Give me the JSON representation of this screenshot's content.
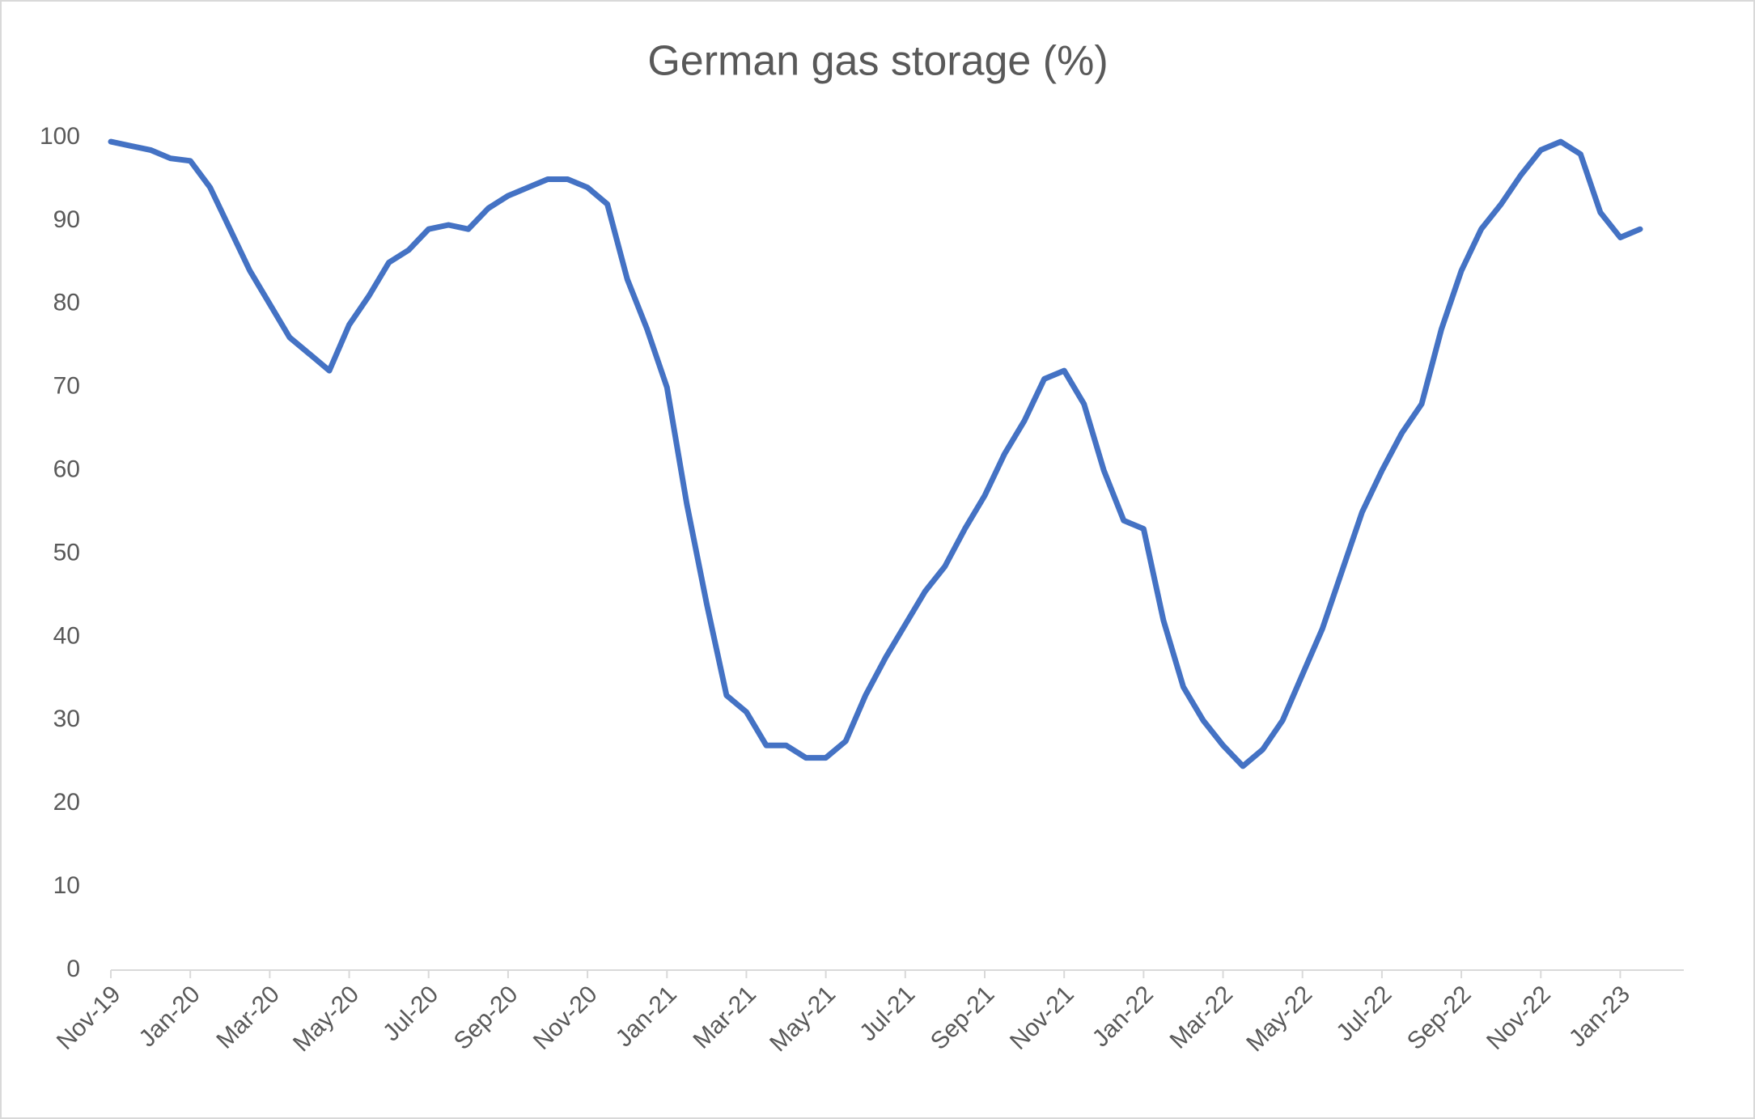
{
  "chart_data": {
    "type": "line",
    "title": "German gas storage (%)",
    "categories": [
      "Nov-19",
      null,
      null,
      null,
      "Jan-20",
      null,
      null,
      null,
      "Mar-20",
      null,
      null,
      null,
      "May-20",
      null,
      null,
      null,
      "Jul-20",
      null,
      null,
      null,
      "Sep-20",
      null,
      null,
      null,
      "Nov-20",
      null,
      null,
      null,
      "Jan-21",
      null,
      null,
      null,
      "Mar-21",
      null,
      null,
      null,
      "May-21",
      null,
      null,
      null,
      "Jul-21",
      null,
      null,
      null,
      "Sep-21",
      null,
      null,
      null,
      "Nov-21",
      null,
      null,
      null,
      "Jan-22",
      null,
      null,
      null,
      "Mar-22",
      null,
      null,
      null,
      "May-22",
      null,
      null,
      null,
      "Jul-22",
      null,
      null,
      null,
      "Sep-22",
      null,
      null,
      null,
      "Nov-22",
      null,
      null,
      null,
      "Jan-23",
      null
    ],
    "values": [
      99.5,
      99,
      98.5,
      97.5,
      97.2,
      94,
      89,
      84,
      80,
      76,
      74,
      72,
      77.5,
      81,
      85,
      86.5,
      89,
      89.5,
      89,
      91.5,
      93,
      94,
      95,
      95,
      94,
      92,
      83,
      77,
      70,
      56,
      44,
      33,
      31,
      27,
      27,
      25.5,
      25.5,
      27.5,
      33,
      37.5,
      41.5,
      45.5,
      48.5,
      53,
      57,
      62,
      66,
      71,
      72,
      68,
      60,
      54,
      53,
      42,
      34,
      30,
      27,
      24.5,
      26.5,
      30,
      35.5,
      41,
      48,
      55,
      60,
      64.5,
      68,
      77,
      84,
      89,
      92,
      95.5,
      98.5,
      99.5,
      98,
      91,
      88,
      89
    ],
    "color": "#4472c4",
    "ylim": [
      0,
      100
    ],
    "yticks": [
      0,
      10,
      20,
      30,
      40,
      50,
      60,
      70,
      80,
      90,
      100
    ],
    "grid": false
  }
}
